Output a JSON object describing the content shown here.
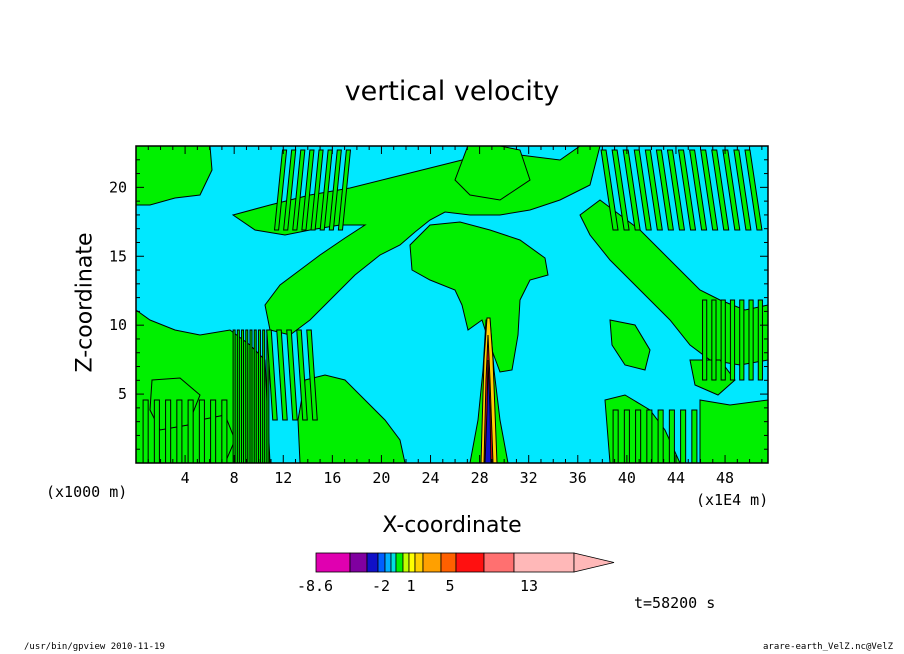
{
  "chart_data": {
    "type": "contour",
    "title": "vertical velocity",
    "xlabel": "X-coordinate",
    "ylabel": "Z-coordinate",
    "x_unit": "(x1000 m)",
    "x_scale": "(x1E4 m)",
    "x_ticks": [
      "4",
      "8",
      "12",
      "16",
      "20",
      "24",
      "28",
      "32",
      "36",
      "40",
      "44",
      "48"
    ],
    "x_tick_values": [
      4,
      8,
      12,
      16,
      20,
      24,
      28,
      32,
      36,
      40,
      44,
      48
    ],
    "xlim": [
      0,
      51.5
    ],
    "y_ticks": [
      "5",
      "10",
      "15",
      "20"
    ],
    "y_tick_values": [
      5,
      10,
      15,
      20
    ],
    "ylim": [
      0,
      23
    ],
    "colorbar": {
      "tick_labels": [
        "-8.6",
        "-2",
        "1",
        "5",
        "13"
      ],
      "colors": [
        "#e000b0",
        "#8000a0",
        "#1010c8",
        "#0060ff",
        "#00b0ff",
        "#00e0e0",
        "#00f000",
        "#c0ff00",
        "#ffff00",
        "#ffd000",
        "#ffa000",
        "#ff6000",
        "#ff1010",
        "#ff7070",
        "#ffb8b8"
      ]
    },
    "background_color": "#00e5ff",
    "positive_color": "#00ee00",
    "time_label": "t=58200 s"
  },
  "footer": {
    "left": "/usr/bin/gpview   2010-11-19",
    "right": "arare-earth_VelZ.nc@VelZ"
  }
}
